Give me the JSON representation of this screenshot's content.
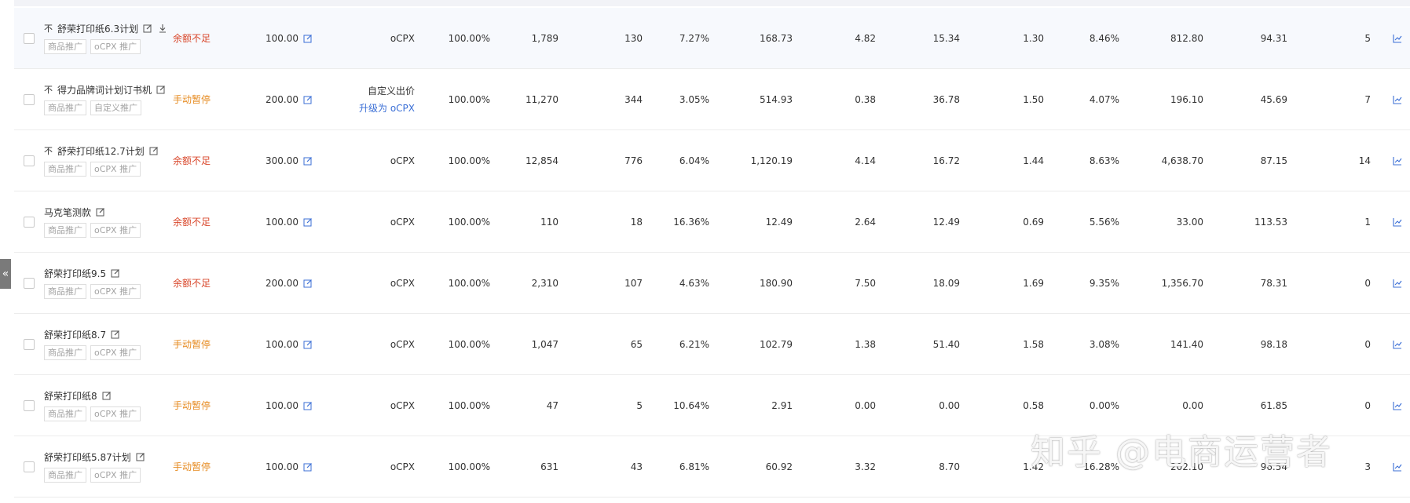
{
  "collapse_glyph": "«",
  "labels": {
    "tag_product": "商品推广",
    "upgrade_link": "升级为 oCPX"
  },
  "colors": {
    "status_red": "#d9472b",
    "status_orange": "#e68a1f",
    "link_blue": "#3b6fd6",
    "icon_blue": "#3b6fd6"
  },
  "rows": [
    {
      "flag": "不",
      "name": "舒荣打印纸6.3计划",
      "download_icon": true,
      "tag2": "oCPX 推广",
      "status": "余额不足",
      "status_color": "red",
      "budget": "100.00",
      "bid_type": "oCPX",
      "bid_upgrade": "",
      "pct": "100.00%",
      "impressions": "1,789",
      "clicks": "130",
      "ctr": "7.27%",
      "cost": "168.73",
      "v1": "4.82",
      "v2": "15.34",
      "v3": "1.30",
      "v4": "8.46%",
      "v5": "812.80",
      "v6": "94.31",
      "v7": "5"
    },
    {
      "flag": "不",
      "name": "得力品牌词计划订书机",
      "download_icon": false,
      "tag2": "自定义推广",
      "status": "手动暂停",
      "status_color": "orange",
      "budget": "200.00",
      "bid_type": "自定义出价",
      "bid_upgrade": "升级为 oCPX",
      "pct": "100.00%",
      "impressions": "11,270",
      "clicks": "344",
      "ctr": "3.05%",
      "cost": "514.93",
      "v1": "0.38",
      "v2": "36.78",
      "v3": "1.50",
      "v4": "4.07%",
      "v5": "196.10",
      "v6": "45.69",
      "v7": "7"
    },
    {
      "flag": "不",
      "name": "舒荣打印纸12.7计划",
      "download_icon": false,
      "tag2": "oCPX 推广",
      "status": "余额不足",
      "status_color": "red",
      "budget": "300.00",
      "bid_type": "oCPX",
      "bid_upgrade": "",
      "pct": "100.00%",
      "impressions": "12,854",
      "clicks": "776",
      "ctr": "6.04%",
      "cost": "1,120.19",
      "v1": "4.14",
      "v2": "16.72",
      "v3": "1.44",
      "v4": "8.63%",
      "v5": "4,638.70",
      "v6": "87.15",
      "v7": "14"
    },
    {
      "flag": "",
      "name": "马克笔测款",
      "download_icon": false,
      "tag2": "oCPX 推广",
      "status": "余额不足",
      "status_color": "red",
      "budget": "100.00",
      "bid_type": "oCPX",
      "bid_upgrade": "",
      "pct": "100.00%",
      "impressions": "110",
      "clicks": "18",
      "ctr": "16.36%",
      "cost": "12.49",
      "v1": "2.64",
      "v2": "12.49",
      "v3": "0.69",
      "v4": "5.56%",
      "v5": "33.00",
      "v6": "113.53",
      "v7": "1"
    },
    {
      "flag": "",
      "name": "舒荣打印纸9.5",
      "download_icon": false,
      "tag2": "oCPX 推广",
      "status": "余额不足",
      "status_color": "red",
      "budget": "200.00",
      "bid_type": "oCPX",
      "bid_upgrade": "",
      "pct": "100.00%",
      "impressions": "2,310",
      "clicks": "107",
      "ctr": "4.63%",
      "cost": "180.90",
      "v1": "7.50",
      "v2": "18.09",
      "v3": "1.69",
      "v4": "9.35%",
      "v5": "1,356.70",
      "v6": "78.31",
      "v7": "0"
    },
    {
      "flag": "",
      "name": "舒荣打印纸8.7",
      "download_icon": false,
      "tag2": "oCPX 推广",
      "status": "手动暂停",
      "status_color": "orange",
      "budget": "100.00",
      "bid_type": "oCPX",
      "bid_upgrade": "",
      "pct": "100.00%",
      "impressions": "1,047",
      "clicks": "65",
      "ctr": "6.21%",
      "cost": "102.79",
      "v1": "1.38",
      "v2": "51.40",
      "v3": "1.58",
      "v4": "3.08%",
      "v5": "141.40",
      "v6": "98.18",
      "v7": "0"
    },
    {
      "flag": "",
      "name": "舒荣打印纸8",
      "download_icon": false,
      "tag2": "oCPX 推广",
      "status": "手动暂停",
      "status_color": "orange",
      "budget": "100.00",
      "bid_type": "oCPX",
      "bid_upgrade": "",
      "pct": "100.00%",
      "impressions": "47",
      "clicks": "5",
      "ctr": "10.64%",
      "cost": "2.91",
      "v1": "0.00",
      "v2": "0.00",
      "v3": "0.58",
      "v4": "0.00%",
      "v5": "0.00",
      "v6": "61.85",
      "v7": "0"
    },
    {
      "flag": "",
      "name": "舒荣打印纸5.87计划",
      "download_icon": false,
      "tag2": "oCPX 推广",
      "status": "手动暂停",
      "status_color": "orange",
      "budget": "100.00",
      "bid_type": "oCPX",
      "bid_upgrade": "",
      "pct": "100.00%",
      "impressions": "631",
      "clicks": "43",
      "ctr": "6.81%",
      "cost": "60.92",
      "v1": "3.32",
      "v2": "8.70",
      "v3": "1.42",
      "v4": "16.28%",
      "v5": "202.10",
      "v6": "96.54",
      "v7": "3"
    }
  ],
  "watermark": "知乎 @电商运营者"
}
